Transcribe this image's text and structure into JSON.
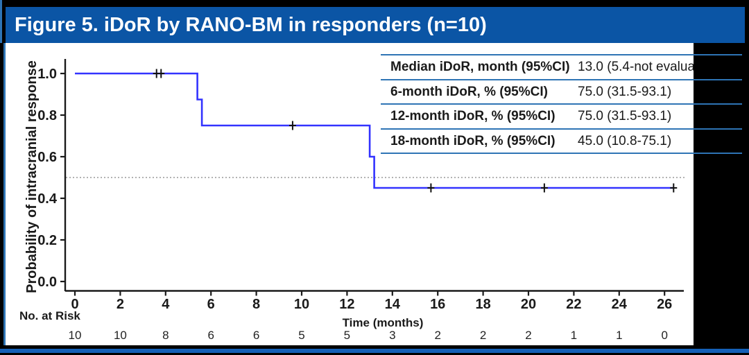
{
  "title_bar": {
    "text": "Figure 5. iDoR by RANO-BM in responders (n=10)"
  },
  "stats_table": {
    "rows": [
      {
        "label": "Median iDoR, month (95%CI)",
        "value": "13.0 (5.4-not evalua"
      },
      {
        "label": "6-month iDoR, % (95%CI)",
        "value": "75.0 (31.5-93.1)"
      },
      {
        "label": "12-month iDoR, % (95%CI)",
        "value": "75.0 (31.5-93.1)"
      },
      {
        "label": "18-month iDoR, % (95%CI)",
        "value": "45.0 (10.8-75.1)"
      }
    ]
  },
  "chart_data": {
    "type": "line",
    "subtype": "kaplan-meier-step",
    "title": "",
    "xlabel": "Time (months)",
    "ylabel": "Probability of intracranial response",
    "xlim": [
      0,
      26
    ],
    "ylim": [
      0.0,
      1.0
    ],
    "x_ticks": [
      0,
      2,
      4,
      6,
      8,
      10,
      12,
      14,
      16,
      18,
      20,
      22,
      24,
      26
    ],
    "y_ticks": [
      "0.0",
      "0.2",
      "0.4",
      "0.6",
      "0.8",
      "1.0"
    ],
    "grid": false,
    "legend": "none",
    "reference_line_y": 0.5,
    "series": [
      {
        "name": "iDoR by RANO-BM (responders)",
        "color": "#3333ff",
        "steps": [
          [
            0.0,
            1.0
          ],
          [
            5.4,
            1.0
          ],
          [
            5.4,
            0.875
          ],
          [
            5.6,
            0.875
          ],
          [
            5.6,
            0.75
          ],
          [
            13.0,
            0.75
          ],
          [
            13.0,
            0.6
          ],
          [
            13.2,
            0.6
          ],
          [
            13.2,
            0.45
          ],
          [
            26.4,
            0.45
          ]
        ],
        "censor_marks": [
          [
            3.6,
            1.0
          ],
          [
            3.8,
            1.0
          ],
          [
            9.6,
            0.75
          ],
          [
            15.7,
            0.45
          ],
          [
            20.7,
            0.45
          ],
          [
            26.4,
            0.45
          ]
        ]
      }
    ],
    "at_risk": {
      "label": "No. at Risk",
      "times": [
        0,
        2,
        4,
        6,
        8,
        10,
        12,
        14,
        16,
        18,
        20,
        22,
        24,
        26
      ],
      "counts": [
        10,
        10,
        8,
        6,
        6,
        5,
        5,
        3,
        2,
        2,
        2,
        1,
        1,
        0
      ]
    }
  },
  "colors": {
    "title_bar_bg": "#0b55a5",
    "table_line_blue": "#2e74b5",
    "curve_blue": "#3333ff",
    "axis_black": "#1a1a1a",
    "reference_gray": "#999999",
    "frame_black": "#000000",
    "bottom_accent_blue": "#1560b7"
  }
}
